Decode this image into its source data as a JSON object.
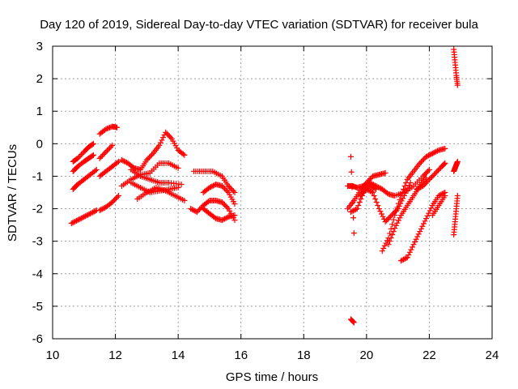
{
  "chart_data": {
    "type": "scatter",
    "title": "Day 120 of 2019, Sidereal Day-to-day VTEC variation (SDTVAR) for receiver bula",
    "xlabel": "GPS time / hours",
    "ylabel": "SDTVAR / TECUs",
    "xlim": [
      10,
      24
    ],
    "ylim": [
      -6,
      3
    ],
    "x_ticks": [
      "10",
      "12",
      "14",
      "16",
      "18",
      "20",
      "22",
      "24"
    ],
    "y_ticks": [
      "-6",
      "-5",
      "-4",
      "-3",
      "-2",
      "-1",
      "0",
      "1",
      "2",
      "3"
    ],
    "grid": true,
    "marker": "+",
    "color": "#ff0000",
    "segments": [
      {
        "x": [
          10.65,
          10.8,
          11.0,
          11.15,
          11.3
        ],
        "y": [
          -0.55,
          -0.45,
          -0.25,
          -0.1,
          0.0
        ]
      },
      {
        "x": [
          10.65,
          10.8,
          11.0,
          11.15,
          11.3
        ],
        "y": [
          -0.85,
          -0.7,
          -0.55,
          -0.45,
          -0.35
        ]
      },
      {
        "x": [
          10.65,
          10.8,
          11.0,
          11.2,
          11.4
        ],
        "y": [
          -1.4,
          -1.25,
          -1.1,
          -0.95,
          -0.8
        ]
      },
      {
        "x": [
          10.6,
          10.8,
          11.0,
          11.2,
          11.4
        ],
        "y": [
          -2.45,
          -2.35,
          -2.25,
          -2.15,
          -2.05
        ]
      },
      {
        "x": [
          11.5,
          11.7,
          11.9,
          12.05
        ],
        "y": [
          0.3,
          0.45,
          0.53,
          0.5
        ]
      },
      {
        "x": [
          11.5,
          11.7,
          11.9
        ],
        "y": [
          -0.45,
          -0.25,
          -0.05
        ]
      },
      {
        "x": [
          11.5,
          11.7,
          11.9,
          12.1
        ],
        "y": [
          -1.0,
          -0.85,
          -0.7,
          -0.55
        ]
      },
      {
        "x": [
          11.5,
          11.7,
          11.9,
          12.1
        ],
        "y": [
          -2.05,
          -1.95,
          -1.8,
          -1.6
        ]
      },
      {
        "x": [
          12.2,
          12.4,
          12.6,
          12.8,
          13.0,
          13.2,
          13.4,
          13.6,
          13.8,
          14.0,
          14.2
        ],
        "y": [
          -0.5,
          -0.6,
          -0.75,
          -0.8,
          -0.5,
          -0.3,
          -0.05,
          0.35,
          0.15,
          -0.2,
          -0.35
        ]
      },
      {
        "x": [
          12.2,
          12.5,
          12.8,
          13.1,
          13.4,
          13.7,
          14.0
        ],
        "y": [
          -1.3,
          -1.1,
          -0.95,
          -0.9,
          -0.6,
          -0.6,
          -0.75
        ]
      },
      {
        "x": [
          12.5,
          12.8,
          13.1,
          13.4,
          13.7,
          14.1
        ],
        "y": [
          -0.8,
          -1.0,
          -1.1,
          -1.2,
          -1.2,
          -1.25
        ]
      },
      {
        "x": [
          12.5,
          12.8,
          13.1,
          13.4,
          13.7,
          14.0
        ],
        "y": [
          -1.2,
          -1.35,
          -1.5,
          -1.45,
          -1.4,
          -1.35
        ]
      },
      {
        "x": [
          12.7,
          13.0,
          13.3,
          13.6,
          13.9,
          14.2
        ],
        "y": [
          -1.7,
          -1.5,
          -1.35,
          -1.45,
          -1.6,
          -1.75
        ]
      },
      {
        "x": [
          14.5,
          14.8,
          15.1,
          15.4,
          15.6,
          15.8
        ],
        "y": [
          -0.85,
          -0.85,
          -0.85,
          -1.0,
          -1.3,
          -1.5
        ]
      },
      {
        "x": [
          14.8,
          15.0,
          15.2,
          15.4,
          15.6,
          15.8
        ],
        "y": [
          -1.5,
          -1.35,
          -1.25,
          -1.3,
          -1.5,
          -1.85
        ]
      },
      {
        "x": [
          14.4,
          14.6,
          14.8,
          15.0,
          15.2,
          15.4,
          15.6,
          15.8
        ],
        "y": [
          -2.0,
          -2.1,
          -1.9,
          -1.75,
          -1.75,
          -1.8,
          -2.0,
          -2.35
        ]
      },
      {
        "x": [
          14.8,
          15.0,
          15.2,
          15.4,
          15.6,
          15.8
        ],
        "y": [
          -2.0,
          -2.15,
          -2.3,
          -2.35,
          -2.25,
          -2.2
        ]
      },
      {
        "x": [
          19.4,
          19.55,
          19.7,
          19.9,
          20.1,
          20.3
        ],
        "y": [
          -1.3,
          -1.3,
          -1.35,
          -1.3,
          -1.3,
          -1.4
        ]
      },
      {
        "x": [
          19.4,
          19.6,
          19.8,
          20.0,
          20.2,
          20.4,
          20.6
        ],
        "y": [
          -2.0,
          -1.75,
          -1.45,
          -1.2,
          -1.0,
          -0.95,
          -0.9
        ]
      },
      {
        "x": [
          19.5,
          19.6
        ],
        "y": [
          -0.4,
          -2.75
        ]
      },
      {
        "x": [
          19.5,
          19.6
        ],
        "y": [
          -5.4,
          -5.5
        ]
      },
      {
        "x": [
          19.5,
          19.7,
          19.9,
          20.1,
          20.3,
          20.5,
          20.7,
          20.9,
          21.2,
          21.5,
          21.8,
          22.0
        ],
        "y": [
          -2.1,
          -2.0,
          -1.5,
          -1.2,
          -1.3,
          -1.4,
          -1.55,
          -1.6,
          -1.5,
          -1.3,
          -1.0,
          -0.8
        ]
      },
      {
        "x": [
          19.8,
          20.0,
          20.2,
          20.4,
          20.6,
          20.8,
          21.0,
          21.2,
          21.4
        ],
        "y": [
          -1.6,
          -1.4,
          -1.5,
          -2.0,
          -2.4,
          -2.2,
          -2.0,
          -1.6,
          -1.2
        ]
      },
      {
        "x": [
          20.5,
          20.7,
          20.9,
          21.1,
          21.3,
          21.5,
          21.7,
          21.9,
          22.1,
          22.3,
          22.5
        ],
        "y": [
          -3.3,
          -2.9,
          -2.2,
          -1.6,
          -1.1,
          -0.85,
          -0.6,
          -0.4,
          -0.3,
          -0.2,
          -0.15
        ]
      },
      {
        "x": [
          20.7,
          20.9,
          21.1,
          21.3,
          21.5,
          21.7,
          21.9
        ],
        "y": [
          -3.1,
          -2.6,
          -2.2,
          -1.9,
          -1.6,
          -1.3,
          -1.05
        ]
      },
      {
        "x": [
          21.1,
          21.3,
          21.5,
          21.7,
          21.9,
          22.1,
          22.3,
          22.5
        ],
        "y": [
          -3.6,
          -3.5,
          -3.1,
          -2.7,
          -2.3,
          -1.9,
          -1.6,
          -1.5
        ]
      },
      {
        "x": [
          21.6,
          21.8,
          22.0,
          22.2,
          22.4,
          22.5
        ],
        "y": [
          -1.4,
          -1.3,
          -1.1,
          -0.9,
          -0.7,
          -0.6
        ]
      },
      {
        "x": [
          22.1,
          22.3,
          22.5
        ],
        "y": [
          -2.2,
          -1.9,
          -1.6
        ]
      },
      {
        "x": [
          22.78,
          22.82,
          22.86,
          22.9
        ],
        "y": [
          2.9,
          2.5,
          2.1,
          1.8
        ]
      },
      {
        "x": [
          22.78,
          22.82,
          22.86,
          22.9
        ],
        "y": [
          -0.85,
          -0.75,
          -0.65,
          -0.55
        ]
      },
      {
        "x": [
          22.78,
          22.82,
          22.86,
          22.9
        ],
        "y": [
          -2.8,
          -2.4,
          -2.0,
          -1.6
        ]
      }
    ]
  }
}
